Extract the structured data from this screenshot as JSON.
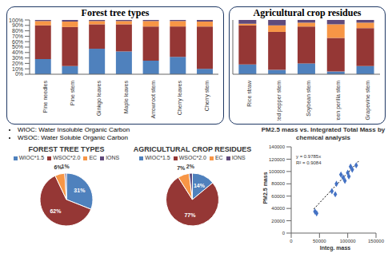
{
  "chart_data": [
    {
      "type": "bar",
      "title": "Forest tree types",
      "categories": [
        "Pine needles",
        "Pine stem",
        "Ginkgo leaves",
        "Maple leaves",
        "Arrowroot stem",
        "Cherry leaves",
        "Cherry stem"
      ],
      "series": [
        {
          "name": "WIOC*1.5",
          "color": "#4F81BD",
          "values": [
            28,
            15,
            47,
            42,
            25,
            32,
            10
          ]
        },
        {
          "name": "WSOC*2.0",
          "color": "#953735",
          "values": [
            62,
            72,
            45,
            50,
            63,
            56,
            78
          ]
        },
        {
          "name": "EC",
          "color": "#F79646",
          "values": [
            8,
            10,
            6,
            6,
            10,
            10,
            9
          ]
        },
        {
          "name": "IONS",
          "color": "#604A7B",
          "values": [
            2,
            3,
            2,
            2,
            2,
            2,
            3
          ]
        }
      ],
      "stacked": true,
      "grid": false,
      "ylim": [
        0,
        100
      ],
      "yticks": [
        {
          "value": 0,
          "label": "0%"
        },
        {
          "value": 10,
          "label": "10%"
        },
        {
          "value": 20,
          "label": "20%"
        },
        {
          "value": 30,
          "label": "30%"
        },
        {
          "value": 40,
          "label": "40%"
        },
        {
          "value": 50,
          "label": "50%"
        },
        {
          "value": 60,
          "label": "60%"
        },
        {
          "value": 70,
          "label": "70%"
        },
        {
          "value": 80,
          "label": "80%"
        },
        {
          "value": 90,
          "label": "90%"
        },
        {
          "value": 100,
          "label": "100%"
        }
      ],
      "annotations": [
        "WIOC: Water Insoluble Organic Carbon",
        "WSOC: Water Soluble Organic Carbon"
      ]
    },
    {
      "type": "bar",
      "title": "Agricultural crop residues",
      "categories": [
        "Rice straw",
        "Red pepper stem",
        "Soybean stem",
        "Green perilla stem",
        "Grapevine stem"
      ],
      "series": [
        {
          "name": "WIOC*1.5",
          "color": "#4F81BD",
          "values": [
            18,
            8,
            20,
            5,
            15
          ]
        },
        {
          "name": "WSOC*2.0",
          "color": "#953735",
          "values": [
            72,
            70,
            68,
            62,
            70
          ]
        },
        {
          "name": "EC",
          "color": "#F79646",
          "values": [
            3,
            12,
            7,
            25,
            10
          ]
        },
        {
          "name": "IONS",
          "color": "#604A7B",
          "values": [
            7,
            10,
            5,
            8,
            5
          ]
        }
      ],
      "stacked": true,
      "grid": false,
      "ylim": [
        0,
        100
      ],
      "tick_labels": "x"
    },
    {
      "type": "pie",
      "title": "FOREST TREE TYPES",
      "categories": [
        "WIOC*1.5",
        "WSOC*2.0",
        "EC",
        "IONS"
      ],
      "values": [
        31,
        62,
        6,
        1
      ],
      "value_labels": [
        "31%",
        "62%",
        "6%",
        "1%"
      ],
      "colors": [
        "#4F81BD",
        "#953735",
        "#F79646",
        "#604A7B"
      ],
      "legend": "top",
      "data_labels": true
    },
    {
      "type": "pie",
      "title": "AGRICULTURAL CROP RESIDUES",
      "categories": [
        "WIOC*1.5",
        "WSOC*2.0",
        "EC",
        "IONS"
      ],
      "values": [
        14,
        77,
        7,
        2
      ],
      "value_labels": [
        "14%",
        "77%",
        "7%",
        "2%"
      ],
      "colors": [
        "#4F81BD",
        "#953735",
        "#F79646",
        "#604A7B"
      ],
      "legend": "top",
      "data_labels": true
    },
    {
      "type": "scatter",
      "title": "PM2.5 mass vs. Integrated Total Mass by chemical analysis",
      "x_label": "Integ. mass",
      "y_label": "PM2.5 mass",
      "x": [
        42000,
        45000,
        72000,
        78000,
        80000,
        88000,
        92000,
        95000,
        100000,
        102000,
        105000,
        108000,
        115000
      ],
      "values": [
        35000,
        32000,
        68000,
        63000,
        80000,
        95000,
        90000,
        85000,
        98000,
        92000,
        108000,
        103000,
        110000
      ],
      "color": "#4472C4",
      "marker": "diamond",
      "trendline": {
        "x": [
          40000,
          120000
        ],
        "values": [
          39140,
          117420
        ],
        "color": "#000000",
        "line_style": "dotted"
      },
      "annotations": [
        "y = 0.9785x",
        "R² = 0.9084"
      ],
      "xlim": [
        0,
        150000
      ],
      "xticks": [
        0,
        50000,
        100000,
        150000
      ],
      "ylim": [
        0,
        140000
      ],
      "yticks": [
        0,
        20000,
        40000,
        60000,
        80000,
        100000,
        120000,
        140000
      ],
      "grid": false
    }
  ]
}
